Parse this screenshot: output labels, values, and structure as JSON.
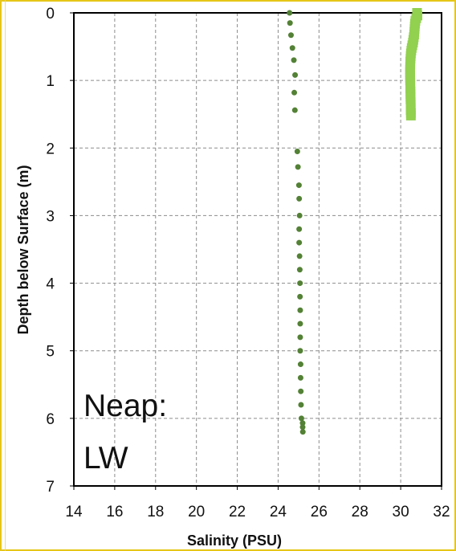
{
  "chart_data": {
    "type": "scatter",
    "xlabel": "Salinity (PSU)",
    "ylabel": "Depth below Surface (m)",
    "xlim": [
      14,
      32
    ],
    "ylim": [
      0,
      7
    ],
    "x_ticks": [
      14,
      16,
      18,
      20,
      22,
      24,
      26,
      28,
      30,
      32
    ],
    "y_ticks": [
      0,
      1,
      2,
      3,
      4,
      5,
      6,
      7
    ],
    "y_axis_inverted": true,
    "grid": "dashed",
    "annotation": {
      "line1": "Neap:",
      "line2": "LW"
    },
    "series": [
      {
        "color": "#538135",
        "marker": "circle",
        "points": [
          [
            24.56,
            0.0
          ],
          [
            24.58,
            0.15
          ],
          [
            24.63,
            0.33
          ],
          [
            24.7,
            0.52
          ],
          [
            24.77,
            0.7
          ],
          [
            24.83,
            0.92
          ],
          [
            24.79,
            1.18
          ],
          [
            24.82,
            1.44
          ],
          [
            24.94,
            2.05
          ],
          [
            24.97,
            2.28
          ],
          [
            25.02,
            2.55
          ],
          [
            25.03,
            2.75
          ],
          [
            25.05,
            3.0
          ],
          [
            25.03,
            3.2
          ],
          [
            25.03,
            3.4
          ],
          [
            25.05,
            3.6
          ],
          [
            25.06,
            3.8
          ],
          [
            25.07,
            4.0
          ],
          [
            25.07,
            4.2
          ],
          [
            25.08,
            4.4
          ],
          [
            25.08,
            4.6
          ],
          [
            25.08,
            4.8
          ],
          [
            25.08,
            5.0
          ],
          [
            25.1,
            5.2
          ],
          [
            25.1,
            5.4
          ],
          [
            25.11,
            5.6
          ],
          [
            25.12,
            5.8
          ],
          [
            25.14,
            6.0
          ],
          [
            25.2,
            6.07
          ],
          [
            25.2,
            6.13
          ],
          [
            25.21,
            6.2
          ]
        ]
      },
      {
        "color": "#92d050",
        "marker": "square",
        "points": [
          [
            30.8,
            0.0
          ],
          [
            30.82,
            0.04
          ],
          [
            30.76,
            0.08
          ],
          [
            30.72,
            0.12
          ],
          [
            30.7,
            0.16
          ],
          [
            30.69,
            0.2
          ],
          [
            30.68,
            0.24
          ],
          [
            30.67,
            0.28
          ],
          [
            30.66,
            0.32
          ],
          [
            30.64,
            0.36
          ],
          [
            30.62,
            0.4
          ],
          [
            30.6,
            0.44
          ],
          [
            30.57,
            0.48
          ],
          [
            30.54,
            0.52
          ],
          [
            30.52,
            0.56
          ],
          [
            30.5,
            0.6
          ],
          [
            30.49,
            0.64
          ],
          [
            30.48,
            0.68
          ],
          [
            30.47,
            0.72
          ],
          [
            30.47,
            0.76
          ],
          [
            30.46,
            0.8
          ],
          [
            30.46,
            0.84
          ],
          [
            30.46,
            0.88
          ],
          [
            30.46,
            0.92
          ],
          [
            30.46,
            0.96
          ],
          [
            30.46,
            1.0
          ],
          [
            30.47,
            1.04
          ],
          [
            30.47,
            1.08
          ],
          [
            30.47,
            1.12
          ],
          [
            30.48,
            1.16
          ],
          [
            30.48,
            1.2
          ],
          [
            30.48,
            1.24
          ],
          [
            30.48,
            1.28
          ],
          [
            30.49,
            1.32
          ],
          [
            30.49,
            1.36
          ],
          [
            30.49,
            1.4
          ],
          [
            30.49,
            1.44
          ],
          [
            30.5,
            1.48
          ],
          [
            30.5,
            1.52
          ]
        ]
      }
    ]
  }
}
